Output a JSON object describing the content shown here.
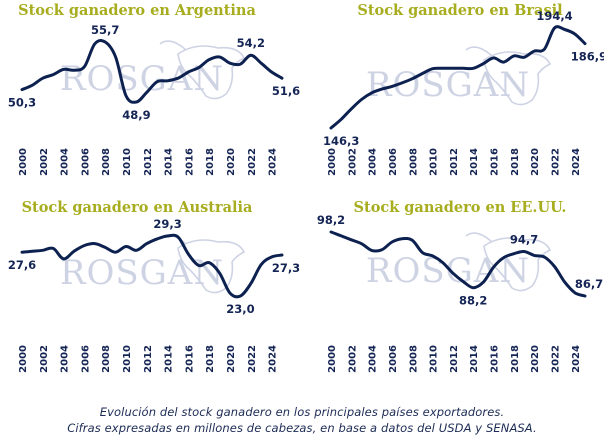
{
  "colors": {
    "title": "#a7ad1e",
    "line": "#0d2150",
    "watermark": "#c9cfe2",
    "text": "#142454"
  },
  "watermark_text": "ROSGAN",
  "caption": {
    "line1": "Evolución del stock ganadero en los principales países exportadores.",
    "line2": "Cifras expresadas en millones de cabezas, en base a datos del USDA y SENASA."
  },
  "chart_data": [
    {
      "type": "line",
      "title": "Stock ganadero en Argentina",
      "xlabel": "",
      "ylabel": "",
      "xticks": [
        2000,
        2002,
        2004,
        2006,
        2008,
        2010,
        2012,
        2014,
        2016,
        2018,
        2020,
        2022,
        2024
      ],
      "x": [
        2000,
        2001,
        2002,
        2003,
        2004,
        2005,
        2006,
        2007,
        2008,
        2009,
        2010,
        2011,
        2012,
        2013,
        2014,
        2015,
        2016,
        2017,
        2018,
        2019,
        2020,
        2021,
        2022,
        2023,
        2024,
        2025
      ],
      "values": [
        50.3,
        50.8,
        51.6,
        52.0,
        52.6,
        52.5,
        52.9,
        55.5,
        55.7,
        54.0,
        49.6,
        48.9,
        50.0,
        51.2,
        51.3,
        51.6,
        52.3,
        52.8,
        53.7,
        54.0,
        53.3,
        53.2,
        54.2,
        53.3,
        52.3,
        51.6
      ],
      "ylim": [
        46,
        58
      ],
      "labels": [
        {
          "text": "50,3",
          "x": 2000,
          "y": 50.3,
          "pos": "below"
        },
        {
          "text": "55,7",
          "x": 2008,
          "y": 55.7,
          "pos": "above"
        },
        {
          "text": "48,9",
          "x": 2011,
          "y": 48.9,
          "pos": "below"
        },
        {
          "text": "54,2",
          "x": 2022,
          "y": 54.2,
          "pos": "above"
        },
        {
          "text": "51,6",
          "x": 2025,
          "y": 51.6,
          "pos": "below"
        }
      ],
      "grid": false,
      "legend": "none"
    },
    {
      "type": "line",
      "title": "Stock ganadero en Brasil",
      "xlabel": "",
      "ylabel": "",
      "xticks": [
        2000,
        2002,
        2004,
        2006,
        2008,
        2010,
        2012,
        2014,
        2016,
        2018,
        2020,
        2022,
        2024
      ],
      "x": [
        2000,
        2001,
        2002,
        2003,
        2004,
        2005,
        2006,
        2007,
        2008,
        2009,
        2010,
        2011,
        2012,
        2013,
        2014,
        2015,
        2016,
        2017,
        2018,
        2019,
        2020,
        2021,
        2022,
        2023,
        2024,
        2025
      ],
      "values": [
        146.3,
        150.5,
        155.5,
        160.0,
        163.2,
        165.0,
        166.3,
        168.0,
        170.0,
        172.5,
        174.8,
        175.0,
        175.0,
        175.0,
        175.0,
        177.3,
        180.0,
        178.0,
        181.0,
        180.3,
        183.3,
        184.2,
        194.4,
        193.7,
        191.5,
        186.9
      ],
      "ylim": [
        142,
        200
      ],
      "labels": [
        {
          "text": "146,3",
          "x": 2001,
          "y": 146.3,
          "pos": "below"
        },
        {
          "text": "194,4",
          "x": 2022,
          "y": 194.4,
          "pos": "above"
        },
        {
          "text": "186,9",
          "x": 2025,
          "y": 186.9,
          "pos": "below"
        }
      ],
      "grid": false,
      "legend": "none"
    },
    {
      "type": "line",
      "title": "Stock ganadero en Australia",
      "xlabel": "",
      "ylabel": "",
      "xticks": [
        2000,
        2002,
        2004,
        2006,
        2008,
        2010,
        2012,
        2014,
        2016,
        2018,
        2020,
        2022,
        2024
      ],
      "x": [
        2000,
        2001,
        2002,
        2003,
        2004,
        2005,
        2006,
        2007,
        2008,
        2009,
        2010,
        2011,
        2012,
        2013,
        2014,
        2015,
        2016,
        2017,
        2018,
        2019,
        2020,
        2021,
        2022,
        2023,
        2024,
        2025
      ],
      "values": [
        27.6,
        27.7,
        27.8,
        28.0,
        26.9,
        27.7,
        28.3,
        28.5,
        28.1,
        27.6,
        28.2,
        27.8,
        28.5,
        29.0,
        29.3,
        29.2,
        27.4,
        26.2,
        26.5,
        25.4,
        23.3,
        23.0,
        24.3,
        26.3,
        27.1,
        27.3
      ],
      "ylim": [
        21.5,
        30.5
      ],
      "labels": [
        {
          "text": "27,6",
          "x": 2000,
          "y": 27.6,
          "pos": "below"
        },
        {
          "text": "29,3",
          "x": 2014,
          "y": 29.3,
          "pos": "above"
        },
        {
          "text": "23,0",
          "x": 2021,
          "y": 23.0,
          "pos": "below"
        },
        {
          "text": "27,3",
          "x": 2025,
          "y": 27.3,
          "pos": "below"
        }
      ],
      "grid": false,
      "legend": "none"
    },
    {
      "type": "line",
      "title": "Stock ganadero en EE.UU.",
      "xlabel": "",
      "ylabel": "",
      "xticks": [
        2000,
        2002,
        2004,
        2006,
        2008,
        2010,
        2012,
        2014,
        2016,
        2018,
        2020,
        2022,
        2024
      ],
      "x": [
        2000,
        2001,
        2002,
        2003,
        2004,
        2005,
        2006,
        2007,
        2008,
        2009,
        2010,
        2011,
        2012,
        2013,
        2014,
        2015,
        2016,
        2017,
        2018,
        2019,
        2020,
        2021,
        2022,
        2023,
        2024,
        2025
      ],
      "values": [
        98.2,
        97.5,
        96.8,
        96.1,
        94.9,
        95.0,
        96.4,
        97.0,
        96.7,
        94.5,
        93.9,
        92.7,
        90.8,
        89.3,
        88.2,
        89.2,
        91.9,
        93.6,
        94.3,
        94.7,
        94.0,
        93.7,
        92.0,
        89.2,
        87.3,
        86.7
      ],
      "ylim": [
        84,
        100.5
      ],
      "labels": [
        {
          "text": "98,2",
          "x": 2000,
          "y": 98.2,
          "pos": "above"
        },
        {
          "text": "88,2",
          "x": 2014,
          "y": 88.2,
          "pos": "below"
        },
        {
          "text": "94,7",
          "x": 2019,
          "y": 94.7,
          "pos": "above"
        },
        {
          "text": "86,7",
          "x": 2025,
          "y": 86.7,
          "pos": "above"
        }
      ],
      "grid": false,
      "legend": "none"
    }
  ]
}
